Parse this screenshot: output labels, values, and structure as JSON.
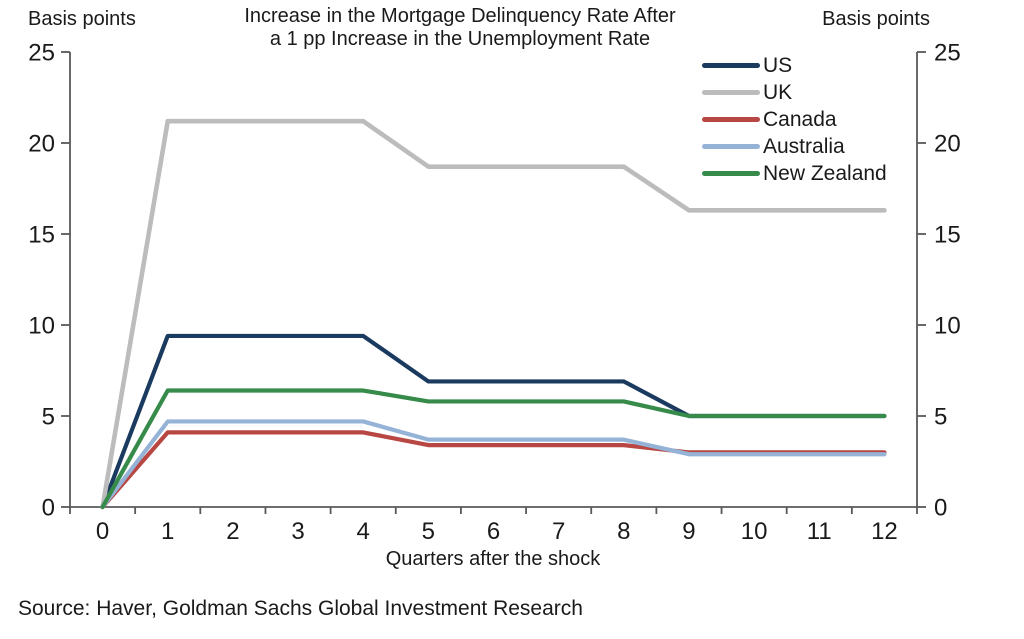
{
  "title": {
    "line1": "Increase in the Mortgage Delinquency Rate After",
    "line2": "a 1 pp Increase in the Unemployment Rate"
  },
  "axes": {
    "left_label": "Basis points",
    "right_label": "Basis points",
    "x_label": "Quarters after the shock",
    "y_ticks": [
      0,
      5,
      10,
      15,
      20,
      25
    ],
    "x_ticks": [
      0,
      1,
      2,
      3,
      4,
      5,
      6,
      7,
      8,
      9,
      10,
      11,
      12
    ]
  },
  "source": "Source: Haver, Goldman Sachs Global Investment Research",
  "style_colors": {
    "axis": "#595959",
    "text": "#1a1a1a"
  },
  "chart_data": {
    "type": "line",
    "title": "Increase in the Mortgage Delinquency Rate After a 1 pp Increase in the Unemployment Rate",
    "xlabel": "Quarters after the shock",
    "ylabel": "Basis points",
    "ylabel_right": "Basis points",
    "x": [
      0,
      1,
      2,
      3,
      4,
      5,
      6,
      7,
      8,
      9,
      10,
      11,
      12
    ],
    "ylim": [
      0,
      25
    ],
    "grid": false,
    "legend_position": "top-right",
    "series": [
      {
        "name": "US",
        "color": "#1b3a5f",
        "values": [
          0,
          9.4,
          9.4,
          9.4,
          9.4,
          6.9,
          6.9,
          6.9,
          6.9,
          5.0,
          5.0,
          5.0,
          5.0
        ]
      },
      {
        "name": "UK",
        "color": "#bcbcbc",
        "values": [
          0,
          21.2,
          21.2,
          21.2,
          21.2,
          18.7,
          18.7,
          18.7,
          18.7,
          16.3,
          16.3,
          16.3,
          16.3
        ]
      },
      {
        "name": "Canada",
        "color": "#b84743",
        "values": [
          0,
          4.1,
          4.1,
          4.1,
          4.1,
          3.4,
          3.4,
          3.4,
          3.4,
          3.0,
          3.0,
          3.0,
          3.0
        ]
      },
      {
        "name": "Australia",
        "color": "#95b3d7",
        "values": [
          0,
          4.7,
          4.7,
          4.7,
          4.7,
          3.7,
          3.7,
          3.7,
          3.7,
          2.9,
          2.9,
          2.9,
          2.9
        ]
      },
      {
        "name": "New Zealand",
        "color": "#378b4a",
        "values": [
          0,
          6.4,
          6.4,
          6.4,
          6.4,
          5.8,
          5.8,
          5.8,
          5.8,
          5.0,
          5.0,
          5.0,
          5.0
        ]
      }
    ]
  }
}
